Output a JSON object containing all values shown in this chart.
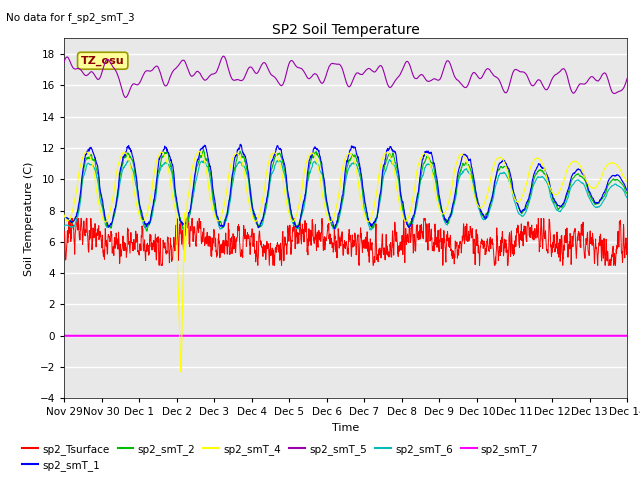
{
  "title": "SP2 Soil Temperature",
  "subtitle": "No data for f_sp2_smT_3",
  "xlabel": "Time",
  "ylabel": "Soil Temperature (C)",
  "ylim": [
    -4,
    19
  ],
  "yticks": [
    -4,
    -2,
    0,
    2,
    4,
    6,
    8,
    10,
    12,
    14,
    16,
    18
  ],
  "tz_label": "TZ_osu",
  "plot_bg_color": "#e8e8e8",
  "line_colors": {
    "sp2_Tsurface": "#ff0000",
    "sp2_smT_1": "#0000ff",
    "sp2_smT_2": "#00bb00",
    "sp2_smT_4": "#ffff00",
    "sp2_smT_5": "#9900aa",
    "sp2_smT_6": "#00bbbb",
    "sp2_smT_7": "#ff00ff"
  },
  "x_tick_labels": [
    "Nov 29",
    "Nov 30",
    "Dec 1",
    "Dec 2",
    "Dec 3",
    "Dec 4",
    "Dec 5",
    "Dec 6",
    "Dec 7",
    "Dec 8",
    "Dec 9",
    "Dec 10",
    "Dec 11",
    "Dec 12",
    "Dec 13",
    "Dec 14"
  ],
  "num_points": 2160,
  "seed": 42
}
